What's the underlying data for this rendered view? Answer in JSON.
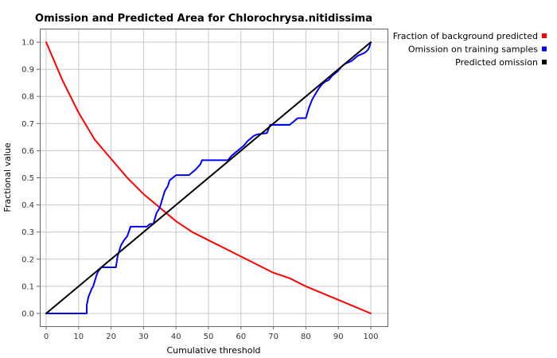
{
  "chart_data": {
    "type": "line",
    "title": "Omission and Predicted Area for Chlorochrysa.nitidissima",
    "xlabel": "Cumulative threshold",
    "ylabel": "Fractional value",
    "xlim": [
      0,
      100
    ],
    "ylim": [
      0,
      1
    ],
    "xticks": [
      0,
      10,
      20,
      30,
      40,
      50,
      60,
      70,
      80,
      90,
      100
    ],
    "yticks": [
      0.0,
      0.1,
      0.2,
      0.3,
      0.4,
      0.5,
      0.6,
      0.7,
      0.8,
      0.9,
      1.0
    ],
    "xtick_labels": [
      "0",
      "10",
      "20",
      "30",
      "40",
      "50",
      "60",
      "70",
      "80",
      "90",
      "100"
    ],
    "ytick_labels": [
      "0.0",
      "0.1",
      "0.2",
      "0.3",
      "0.4",
      "0.5",
      "0.6",
      "0.7",
      "0.8",
      "0.9",
      "1.0"
    ],
    "grid": true,
    "legend_position": "top-right-outside",
    "series": [
      {
        "name": "Fraction of background predicted",
        "color": "#ff0000",
        "x": [
          0,
          5,
          10,
          15,
          20,
          25,
          30,
          35,
          40,
          45,
          50,
          55,
          60,
          65,
          70,
          75,
          80,
          85,
          90,
          95,
          100
        ],
        "y": [
          1.0,
          0.86,
          0.74,
          0.64,
          0.57,
          0.5,
          0.44,
          0.39,
          0.34,
          0.3,
          0.27,
          0.24,
          0.21,
          0.18,
          0.15,
          0.13,
          0.1,
          0.075,
          0.05,
          0.025,
          0.0
        ]
      },
      {
        "name": "Omission on training samples",
        "color": "#0000ff",
        "x": [
          0,
          12.5,
          12.5,
          13,
          14,
          14.5,
          15,
          15.5,
          16,
          17,
          18,
          18.5,
          21.5,
          22,
          22.5,
          23,
          24,
          25,
          26,
          30,
          31,
          32,
          33,
          33.5,
          34,
          35,
          35.5,
          36,
          36.5,
          37,
          37.5,
          38,
          39,
          40,
          44,
          46,
          47.5,
          48,
          56,
          57,
          58,
          59,
          60,
          61,
          62,
          63,
          64,
          65,
          68,
          68.5,
          69,
          75,
          77,
          77.5,
          80,
          81,
          82,
          83,
          84,
          85,
          86,
          87,
          88,
          89,
          90,
          91,
          92,
          93,
          94,
          95,
          96,
          97,
          98,
          99,
          99.5,
          100
        ],
        "y": [
          0.0,
          0.0,
          0.03,
          0.06,
          0.09,
          0.1,
          0.12,
          0.14,
          0.155,
          0.17,
          0.17,
          0.17,
          0.17,
          0.21,
          0.23,
          0.25,
          0.27,
          0.285,
          0.32,
          0.32,
          0.32,
          0.33,
          0.33,
          0.35,
          0.37,
          0.39,
          0.41,
          0.43,
          0.45,
          0.46,
          0.47,
          0.49,
          0.5,
          0.51,
          0.51,
          0.53,
          0.55,
          0.565,
          0.565,
          0.58,
          0.59,
          0.6,
          0.61,
          0.62,
          0.635,
          0.645,
          0.655,
          0.66,
          0.665,
          0.68,
          0.695,
          0.695,
          0.715,
          0.72,
          0.72,
          0.76,
          0.79,
          0.81,
          0.83,
          0.845,
          0.855,
          0.86,
          0.875,
          0.885,
          0.895,
          0.91,
          0.92,
          0.925,
          0.93,
          0.94,
          0.95,
          0.955,
          0.96,
          0.97,
          0.98,
          1.0
        ]
      },
      {
        "name": "Predicted omission",
        "color": "#000000",
        "x": [
          0,
          100
        ],
        "y": [
          0,
          1
        ]
      }
    ]
  }
}
